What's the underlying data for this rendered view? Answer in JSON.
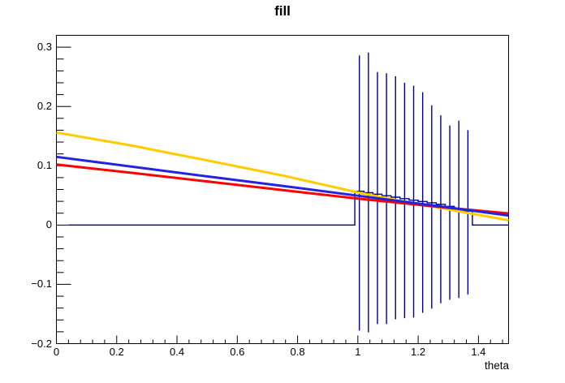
{
  "title": "fill",
  "colors": {
    "background": "#ffffff",
    "frame": "#000000",
    "text": "#000000",
    "histogram": "#00008f",
    "curve_yellow": "#ffcc00",
    "curve_blue": "#2424dc",
    "curve_red": "#ff0000"
  },
  "chart_data": {
    "type": "line",
    "title": "fill",
    "xlabel": "theta",
    "ylabel": "",
    "xlim": [
      0,
      1.5
    ],
    "ylim": [
      -0.2,
      0.32
    ],
    "grid": false,
    "legend": false,
    "x_ticks": [
      {
        "v": 0,
        "label": "0"
      },
      {
        "v": 0.2,
        "label": "0.2"
      },
      {
        "v": 0.4,
        "label": "0.4"
      },
      {
        "v": 0.6,
        "label": "0.6"
      },
      {
        "v": 0.8,
        "label": "0.8"
      },
      {
        "v": 1,
        "label": "1"
      },
      {
        "v": 1.2,
        "label": "1.2"
      },
      {
        "v": 1.4,
        "label": "1.4"
      }
    ],
    "y_ticks": [
      {
        "v": -0.2,
        "label": "−0.2"
      },
      {
        "v": -0.1,
        "label": "−0.1"
      },
      {
        "v": 0,
        "label": "0"
      },
      {
        "v": 0.1,
        "label": "0.1"
      },
      {
        "v": 0.2,
        "label": "0.2"
      },
      {
        "v": 0.3,
        "label": "0.3"
      }
    ],
    "x_minor_step": 0.04,
    "y_minor_step": 0.02,
    "series": [
      {
        "name": "yellow-curve",
        "color": "#ffcc00",
        "width": 3,
        "points": [
          [
            0,
            0.156
          ],
          [
            0.125,
            0.145
          ],
          [
            0.25,
            0.134
          ],
          [
            0.375,
            0.1215
          ],
          [
            0.5,
            0.109
          ],
          [
            0.625,
            0.0963
          ],
          [
            0.75,
            0.0835
          ],
          [
            0.875,
            0.0693
          ],
          [
            1.0,
            0.055
          ],
          [
            1.125,
            0.0425
          ],
          [
            1.25,
            0.031
          ],
          [
            1.375,
            0.0195
          ],
          [
            1.5,
            0.008
          ]
        ]
      },
      {
        "name": "red-curve",
        "color": "#ff0000",
        "width": 3,
        "points": [
          [
            0,
            0.102
          ],
          [
            0.25,
            0.088
          ],
          [
            0.5,
            0.0735
          ],
          [
            0.75,
            0.059
          ],
          [
            1.0,
            0.0445
          ],
          [
            1.25,
            0.0315
          ],
          [
            1.375,
            0.0255
          ],
          [
            1.5,
            0.0196
          ]
        ]
      },
      {
        "name": "blue-curve",
        "color": "#2424dc",
        "width": 3,
        "points": [
          [
            0,
            0.115
          ],
          [
            0.25,
            0.0985
          ],
          [
            0.5,
            0.082
          ],
          [
            0.75,
            0.066
          ],
          [
            1.0,
            0.0495
          ],
          [
            1.25,
            0.033
          ],
          [
            1.375,
            0.0245
          ],
          [
            1.5,
            0.016
          ]
        ]
      }
    ],
    "histogram": {
      "name": "navy-step-histogram",
      "color": "#00008f",
      "zero_line_start": 0.042,
      "bin_start": 0.99,
      "bin_width": 0.03,
      "contents": [
        0.057,
        0.0545,
        0.052,
        0.0495,
        0.047,
        0.0445,
        0.042,
        0.0398,
        0.0375,
        0.035,
        0.0315,
        0.025,
        0.0235
      ]
    },
    "error_bars": {
      "name": "navy-error-bars",
      "color": "#00008f",
      "x": [
        1.005,
        1.035,
        1.065,
        1.095,
        1.125,
        1.155,
        1.185,
        1.215,
        1.245,
        1.275,
        1.305,
        1.335,
        1.365
      ],
      "top": [
        0.286,
        0.291,
        0.258,
        0.256,
        0.251,
        0.24,
        0.235,
        0.224,
        0.202,
        0.185,
        0.168,
        0.176,
        0.16
      ],
      "bottom": [
        -0.178,
        -0.181,
        -0.167,
        -0.167,
        -0.159,
        -0.157,
        -0.156,
        -0.148,
        -0.141,
        -0.132,
        -0.126,
        -0.123,
        -0.117
      ]
    }
  }
}
